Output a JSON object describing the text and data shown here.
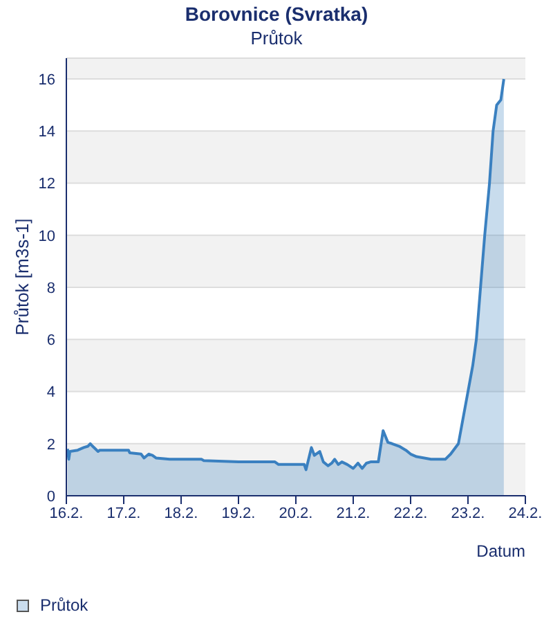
{
  "chart_data": {
    "type": "area",
    "title": "Borovnice (Svratka)",
    "subtitle": "Průtok",
    "xlabel": "Datum",
    "ylabel": "Průtok [m3s-1]",
    "series": [
      {
        "name": "Průtok",
        "color": "#3a80c0",
        "x": [
          "--02-16T00:30",
          "--02-16T01:00",
          "--02-16T01:30",
          "--02-16T04:45",
          "--02-16T07:15",
          "--02-16T09:00",
          "--02-16T10:00",
          "--02-16T11:00",
          "--02-16T13:15",
          "--02-16T14:00",
          "--02-16T19:15",
          "--02-17T02:00",
          "--02-17T02:30",
          "--02-17T07:15",
          "--02-17T08:30",
          "--02-17T10:30",
          "--02-17T12:00",
          "--02-17T13:30",
          "--02-17T19:15",
          "--02-18T08:30",
          "--02-18T09:30",
          "--02-19T00:00",
          "--02-19T15:15",
          "--02-19T16:45",
          "--02-20T02:30",
          "--02-20T03:30",
          "--02-20T04:15",
          "--02-20T06:30",
          "--02-20T07:45",
          "--02-20T10:00",
          "--02-20T11:30",
          "--02-20T13:30",
          "--02-20T15:00",
          "--02-20T16:15",
          "--02-20T17:45",
          "--02-20T19:15",
          "--02-20T21:30",
          "--02-21T00:00",
          "--02-21T02:00",
          "--02-21T03:45",
          "--02-21T05:30",
          "--02-21T07:15",
          "--02-21T10:30",
          "--02-21T12:30",
          "--02-21T14:30",
          "--02-21T16:15",
          "--02-21T19:15",
          "--02-21T22:00",
          "--02-22T00:00",
          "--02-22T02:30",
          "--02-22T08:30",
          "--02-22T14:30",
          "--02-22T16:45",
          "--02-22T20:00",
          "--02-22T22:00",
          "--02-23T00:00",
          "--02-23T02:00",
          "--02-23T03:30",
          "--02-23T05:15",
          "--02-23T07:00",
          "--02-23T09:00",
          "--02-23T10:30",
          "--02-23T12:00",
          "--02-23T13:45",
          "--02-23T15:00"
        ],
        "values": [
          1.8,
          1.4,
          1.7,
          1.75,
          1.85,
          1.9,
          2.0,
          1.9,
          1.7,
          1.75,
          1.75,
          1.75,
          1.65,
          1.6,
          1.45,
          1.6,
          1.55,
          1.45,
          1.4,
          1.4,
          1.35,
          1.3,
          1.3,
          1.2,
          1.2,
          1.2,
          1.0,
          1.85,
          1.55,
          1.7,
          1.3,
          1.15,
          1.25,
          1.4,
          1.2,
          1.3,
          1.2,
          1.05,
          1.25,
          1.05,
          1.25,
          1.3,
          1.3,
          2.5,
          2.05,
          2.0,
          1.9,
          1.75,
          1.6,
          1.5,
          1.4,
          1.4,
          1.6,
          2.0,
          3.0,
          4.0,
          5.0,
          6.0,
          8.0,
          10.0,
          12.0,
          14.0,
          15.0,
          15.2,
          16.0
        ]
      }
    ],
    "xlim": [
      "--02-16",
      "--02-24"
    ],
    "xticks": [
      {
        "value": "--02-16",
        "label": "16.2."
      },
      {
        "value": "--02-17",
        "label": "17.2."
      },
      {
        "value": "--02-18",
        "label": "18.2."
      },
      {
        "value": "--02-19",
        "label": "19.2."
      },
      {
        "value": "--02-20",
        "label": "20.2."
      },
      {
        "value": "--02-21",
        "label": "21.2."
      },
      {
        "value": "--02-22",
        "label": "22.2."
      },
      {
        "value": "--02-23",
        "label": "23.2."
      },
      {
        "value": "--02-24",
        "label": "24.2."
      }
    ],
    "ylim": [
      0,
      16.8
    ],
    "yticks": [
      0,
      2,
      4,
      6,
      8,
      10,
      12,
      14,
      16
    ],
    "grid": "y",
    "legend": "bottom left"
  }
}
